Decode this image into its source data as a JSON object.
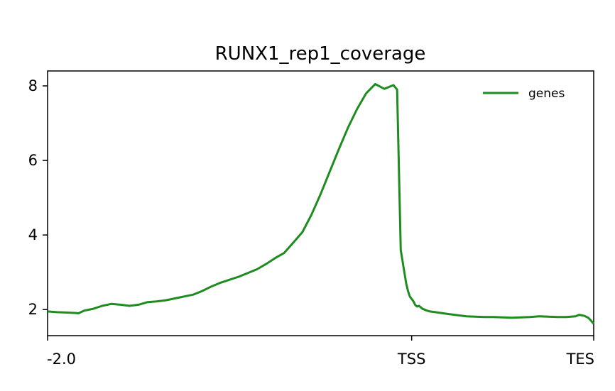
{
  "chart_data": {
    "type": "line",
    "title": "RUNX1_rep1_coverage",
    "xlabel": "",
    "ylabel": "",
    "xlim": [
      0,
      300
    ],
    "ylim": [
      1.3,
      8.4
    ],
    "x_ticks": [
      {
        "pos": 0,
        "label": "-2.0"
      },
      {
        "pos": 200,
        "label": "TSS"
      },
      {
        "pos": 300,
        "label": "TES"
      }
    ],
    "y_ticks": [
      2,
      4,
      6,
      8
    ],
    "y_tick_labels": [
      "2",
      "4",
      "6",
      "8"
    ],
    "grid": false,
    "legend_position": "top-right",
    "series": [
      {
        "name": "genes",
        "color": "#1e8c1e",
        "x": [
          0,
          5,
          10,
          15,
          17,
          20,
          25,
          30,
          35,
          40,
          45,
          50,
          55,
          60,
          65,
          70,
          75,
          80,
          85,
          90,
          95,
          100,
          105,
          110,
          115,
          120,
          125,
          130,
          135,
          140,
          145,
          150,
          155,
          160,
          165,
          170,
          175,
          180,
          185,
          190,
          192,
          194,
          196,
          197,
          198,
          199,
          201,
          202,
          203,
          204,
          206,
          208,
          210,
          213,
          216,
          220,
          225,
          230,
          235,
          240,
          245,
          250,
          255,
          260,
          265,
          270,
          275,
          280,
          285,
          290,
          292,
          295,
          297,
          298,
          300
        ],
        "values": [
          1.95,
          1.93,
          1.92,
          1.91,
          1.9,
          1.97,
          2.02,
          2.1,
          2.15,
          2.13,
          2.1,
          2.13,
          2.2,
          2.22,
          2.25,
          2.3,
          2.35,
          2.4,
          2.5,
          2.62,
          2.72,
          2.8,
          2.88,
          2.98,
          3.08,
          3.22,
          3.38,
          3.52,
          3.8,
          4.08,
          4.55,
          5.1,
          5.7,
          6.3,
          6.88,
          7.38,
          7.8,
          8.05,
          7.92,
          8.02,
          7.9,
          3.6,
          3.0,
          2.7,
          2.5,
          2.35,
          2.22,
          2.12,
          2.08,
          2.1,
          2.02,
          1.98,
          1.95,
          1.93,
          1.91,
          1.88,
          1.85,
          1.82,
          1.81,
          1.8,
          1.8,
          1.79,
          1.78,
          1.79,
          1.8,
          1.82,
          1.81,
          1.8,
          1.8,
          1.82,
          1.86,
          1.83,
          1.78,
          1.73,
          1.62
        ]
      }
    ]
  }
}
